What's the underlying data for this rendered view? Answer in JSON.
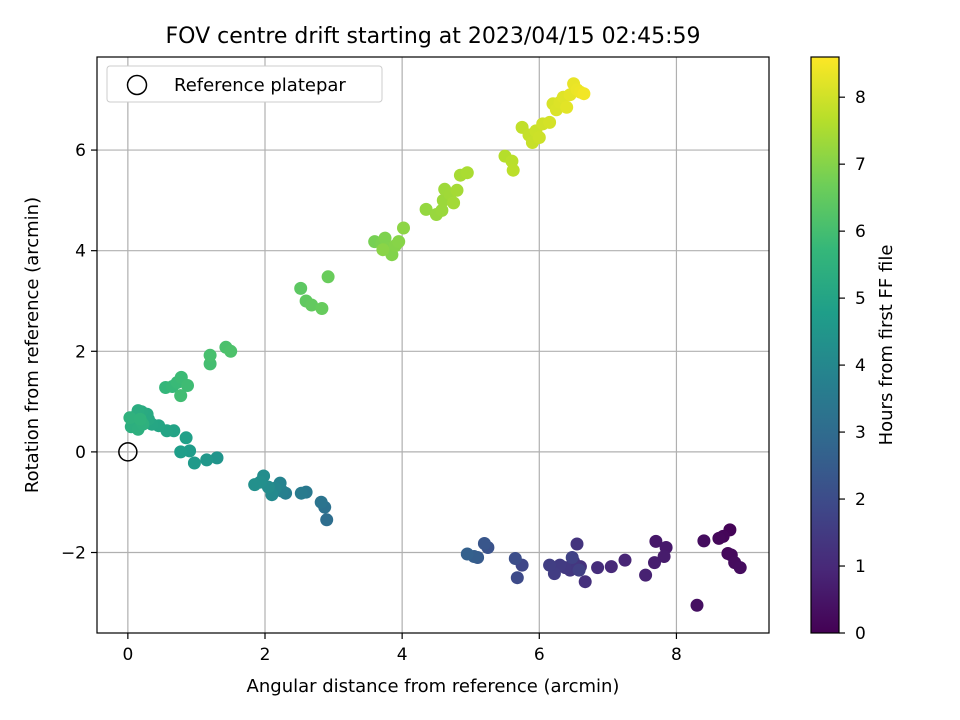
{
  "chart_data": {
    "type": "scatter",
    "title": "FOV centre drift starting at 2023/04/15 02:45:59",
    "xlabel": "Angular distance from reference (arcmin)",
    "ylabel": "Rotation from reference (arcmin)",
    "xlim": [
      -0.45,
      9.35
    ],
    "ylim": [
      -3.6,
      7.85
    ],
    "x_ticks": [
      0,
      2,
      4,
      6,
      8
    ],
    "y_ticks": [
      -2,
      0,
      2,
      4,
      6
    ],
    "x_tick_labels": [
      "0",
      "2",
      "4",
      "6",
      "8"
    ],
    "y_tick_labels": [
      "−2",
      "0",
      "2",
      "4",
      "6"
    ],
    "grid": true,
    "legend": {
      "placement": "top-left",
      "label": "Reference platepar",
      "marker": "open-circle"
    },
    "reference_point": {
      "x": 0,
      "y": 0
    },
    "colorbar": {
      "label": "Hours from first FF file",
      "range": [
        0,
        8.6
      ],
      "ticks": [
        0,
        1,
        2,
        3,
        4,
        5,
        6,
        7,
        8
      ],
      "tick_labels": [
        "0",
        "1",
        "2",
        "3",
        "4",
        "5",
        "6",
        "7",
        "8"
      ],
      "colormap": "viridis",
      "colors": [
        "#440154",
        "#482878",
        "#3e4989",
        "#31688e",
        "#26828e",
        "#1f9e89",
        "#35b779",
        "#6ece58",
        "#b5de2b",
        "#fde725"
      ]
    },
    "points": [
      {
        "x": 8.78,
        "y": -1.55,
        "t": 0.08
      },
      {
        "x": 8.68,
        "y": -1.68,
        "t": 0.12
      },
      {
        "x": 8.62,
        "y": -1.72,
        "t": 0.16
      },
      {
        "x": 8.75,
        "y": -2.02,
        "t": 0.18
      },
      {
        "x": 8.8,
        "y": -2.05,
        "t": 0.2
      },
      {
        "x": 8.85,
        "y": -2.2,
        "t": 0.24
      },
      {
        "x": 8.93,
        "y": -2.3,
        "t": 0.26
      },
      {
        "x": 8.4,
        "y": -1.77,
        "t": 0.3
      },
      {
        "x": 8.3,
        "y": -3.05,
        "t": 0.35
      },
      {
        "x": 7.7,
        "y": -1.78,
        "t": 0.55
      },
      {
        "x": 7.85,
        "y": -1.9,
        "t": 0.6
      },
      {
        "x": 7.82,
        "y": -2.08,
        "t": 0.65
      },
      {
        "x": 7.68,
        "y": -2.2,
        "t": 0.7
      },
      {
        "x": 7.55,
        "y": -2.45,
        "t": 0.8
      },
      {
        "x": 7.25,
        "y": -2.15,
        "t": 0.9
      },
      {
        "x": 7.05,
        "y": -2.28,
        "t": 1.0
      },
      {
        "x": 6.85,
        "y": -2.3,
        "t": 1.1
      },
      {
        "x": 6.67,
        "y": -2.58,
        "t": 1.2
      },
      {
        "x": 6.6,
        "y": -2.28,
        "t": 1.25
      },
      {
        "x": 6.55,
        "y": -1.83,
        "t": 1.3
      },
      {
        "x": 6.5,
        "y": -2.18,
        "t": 1.35
      },
      {
        "x": 6.45,
        "y": -2.35,
        "t": 1.4
      },
      {
        "x": 6.38,
        "y": -2.3,
        "t": 1.45
      },
      {
        "x": 6.3,
        "y": -2.25,
        "t": 1.5
      },
      {
        "x": 6.22,
        "y": -2.42,
        "t": 1.55
      },
      {
        "x": 6.15,
        "y": -2.25,
        "t": 1.6
      },
      {
        "x": 6.58,
        "y": -2.35,
        "t": 1.65
      },
      {
        "x": 6.48,
        "y": -2.1,
        "t": 1.7
      },
      {
        "x": 5.75,
        "y": -2.25,
        "t": 1.85
      },
      {
        "x": 5.68,
        "y": -2.5,
        "t": 1.95
      },
      {
        "x": 5.65,
        "y": -2.12,
        "t": 2.05
      },
      {
        "x": 5.25,
        "y": -1.9,
        "t": 2.2
      },
      {
        "x": 5.2,
        "y": -1.82,
        "t": 2.3
      },
      {
        "x": 5.1,
        "y": -2.1,
        "t": 2.45
      },
      {
        "x": 5.05,
        "y": -2.08,
        "t": 2.55
      },
      {
        "x": 4.95,
        "y": -2.03,
        "t": 2.65
      },
      {
        "x": 2.9,
        "y": -1.35,
        "t": 3.1
      },
      {
        "x": 2.87,
        "y": -1.1,
        "t": 3.2
      },
      {
        "x": 2.82,
        "y": -1.0,
        "t": 3.3
      },
      {
        "x": 2.6,
        "y": -0.8,
        "t": 3.45
      },
      {
        "x": 2.53,
        "y": -0.82,
        "t": 3.55
      },
      {
        "x": 2.3,
        "y": -0.82,
        "t": 3.65
      },
      {
        "x": 2.25,
        "y": -0.78,
        "t": 3.75
      },
      {
        "x": 2.22,
        "y": -0.62,
        "t": 3.85
      },
      {
        "x": 2.15,
        "y": -0.72,
        "t": 3.95
      },
      {
        "x": 2.1,
        "y": -0.85,
        "t": 4.05
      },
      {
        "x": 2.05,
        "y": -0.7,
        "t": 4.15
      },
      {
        "x": 1.98,
        "y": -0.48,
        "t": 4.2
      },
      {
        "x": 1.93,
        "y": -0.6,
        "t": 4.25
      },
      {
        "x": 1.85,
        "y": -0.65,
        "t": 4.3
      },
      {
        "x": 1.3,
        "y": -0.12,
        "t": 4.45
      },
      {
        "x": 1.15,
        "y": -0.16,
        "t": 4.55
      },
      {
        "x": 0.97,
        "y": -0.22,
        "t": 4.65
      },
      {
        "x": 0.9,
        "y": 0.02,
        "t": 4.72
      },
      {
        "x": 0.77,
        "y": 0.0,
        "t": 4.78
      },
      {
        "x": 0.85,
        "y": 0.28,
        "t": 4.85
      },
      {
        "x": 0.67,
        "y": 0.42,
        "t": 4.95
      },
      {
        "x": 0.57,
        "y": 0.42,
        "t": 5.0
      },
      {
        "x": 0.45,
        "y": 0.52,
        "t": 5.05
      },
      {
        "x": 0.35,
        "y": 0.55,
        "t": 5.1
      },
      {
        "x": 0.3,
        "y": 0.65,
        "t": 5.15
      },
      {
        "x": 0.28,
        "y": 0.75,
        "t": 5.2
      },
      {
        "x": 0.2,
        "y": 0.8,
        "t": 5.25
      },
      {
        "x": 0.15,
        "y": 0.82,
        "t": 5.3
      },
      {
        "x": 0.12,
        "y": 0.72,
        "t": 5.33
      },
      {
        "x": 0.08,
        "y": 0.6,
        "t": 5.36
      },
      {
        "x": 0.05,
        "y": 0.5,
        "t": 5.4
      },
      {
        "x": 0.15,
        "y": 0.45,
        "t": 5.43
      },
      {
        "x": 0.22,
        "y": 0.55,
        "t": 5.46
      },
      {
        "x": 0.03,
        "y": 0.68,
        "t": 5.5
      },
      {
        "x": 0.18,
        "y": 0.65,
        "t": 5.53
      },
      {
        "x": 0.55,
        "y": 1.28,
        "t": 5.7
      },
      {
        "x": 0.65,
        "y": 1.3,
        "t": 5.75
      },
      {
        "x": 0.72,
        "y": 1.38,
        "t": 5.8
      },
      {
        "x": 0.78,
        "y": 1.48,
        "t": 5.85
      },
      {
        "x": 0.87,
        "y": 1.32,
        "t": 5.9
      },
      {
        "x": 0.77,
        "y": 1.12,
        "t": 5.95
      },
      {
        "x": 1.2,
        "y": 1.75,
        "t": 6.0
      },
      {
        "x": 1.2,
        "y": 1.92,
        "t": 6.05
      },
      {
        "x": 1.43,
        "y": 2.08,
        "t": 6.1
      },
      {
        "x": 1.5,
        "y": 2.0,
        "t": 6.15
      },
      {
        "x": 2.52,
        "y": 3.25,
        "t": 6.4
      },
      {
        "x": 2.6,
        "y": 3.0,
        "t": 6.45
      },
      {
        "x": 2.68,
        "y": 2.92,
        "t": 6.5
      },
      {
        "x": 2.83,
        "y": 2.85,
        "t": 6.55
      },
      {
        "x": 2.92,
        "y": 3.48,
        "t": 6.6
      },
      {
        "x": 3.6,
        "y": 4.18,
        "t": 6.8
      },
      {
        "x": 3.7,
        "y": 4.15,
        "t": 6.85
      },
      {
        "x": 3.75,
        "y": 4.25,
        "t": 6.9
      },
      {
        "x": 3.8,
        "y": 4.05,
        "t": 6.93
      },
      {
        "x": 3.85,
        "y": 3.92,
        "t": 6.96
      },
      {
        "x": 3.9,
        "y": 4.1,
        "t": 7.0
      },
      {
        "x": 3.95,
        "y": 4.18,
        "t": 7.03
      },
      {
        "x": 3.72,
        "y": 4.02,
        "t": 7.06
      },
      {
        "x": 4.02,
        "y": 4.45,
        "t": 7.1
      },
      {
        "x": 4.35,
        "y": 4.82,
        "t": 7.2
      },
      {
        "x": 4.5,
        "y": 4.72,
        "t": 7.25
      },
      {
        "x": 4.58,
        "y": 4.8,
        "t": 7.28
      },
      {
        "x": 4.6,
        "y": 5.0,
        "t": 7.3
      },
      {
        "x": 4.62,
        "y": 5.22,
        "t": 7.33
      },
      {
        "x": 4.7,
        "y": 5.12,
        "t": 7.36
      },
      {
        "x": 4.75,
        "y": 4.95,
        "t": 7.4
      },
      {
        "x": 4.8,
        "y": 5.2,
        "t": 7.43
      },
      {
        "x": 4.85,
        "y": 5.5,
        "t": 7.46
      },
      {
        "x": 4.95,
        "y": 5.55,
        "t": 7.5
      },
      {
        "x": 5.5,
        "y": 5.88,
        "t": 7.65
      },
      {
        "x": 5.6,
        "y": 5.78,
        "t": 7.7
      },
      {
        "x": 5.62,
        "y": 5.6,
        "t": 7.73
      },
      {
        "x": 5.75,
        "y": 6.45,
        "t": 7.8
      },
      {
        "x": 5.85,
        "y": 6.3,
        "t": 7.85
      },
      {
        "x": 5.9,
        "y": 6.15,
        "t": 7.88
      },
      {
        "x": 5.95,
        "y": 6.38,
        "t": 7.92
      },
      {
        "x": 6.0,
        "y": 6.25,
        "t": 7.95
      },
      {
        "x": 6.05,
        "y": 6.52,
        "t": 8.0
      },
      {
        "x": 6.15,
        "y": 6.55,
        "t": 8.05
      },
      {
        "x": 6.2,
        "y": 6.92,
        "t": 8.1
      },
      {
        "x": 6.25,
        "y": 6.8,
        "t": 8.13
      },
      {
        "x": 6.3,
        "y": 6.95,
        "t": 8.16
      },
      {
        "x": 6.35,
        "y": 7.05,
        "t": 8.2
      },
      {
        "x": 6.4,
        "y": 6.85,
        "t": 8.24
      },
      {
        "x": 6.45,
        "y": 7.1,
        "t": 8.28
      },
      {
        "x": 6.5,
        "y": 7.32,
        "t": 8.32
      },
      {
        "x": 6.55,
        "y": 7.2,
        "t": 8.36
      },
      {
        "x": 6.6,
        "y": 7.15,
        "t": 8.4
      },
      {
        "x": 6.65,
        "y": 7.12,
        "t": 8.45
      }
    ]
  }
}
